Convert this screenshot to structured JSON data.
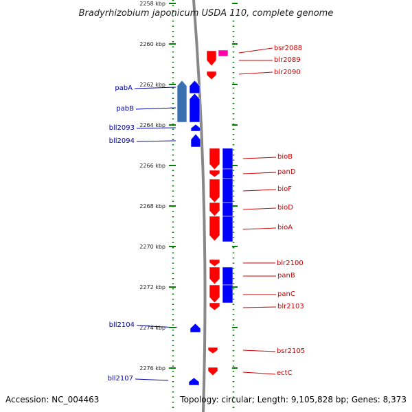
{
  "title": "Bradyrhizobium japonicum USDA 110, complete genome",
  "footer": {
    "accession": "Accession: NC_004463",
    "stats": "Topology: circular; Length: 9,105,828 bp; Genes: 8,373"
  },
  "colors": {
    "forward_gene": "#ff0000",
    "reverse_gene": "#0000ff",
    "rna_gene": "#ff00aa",
    "tick": "#008000",
    "backbone": "#888888",
    "forward_label": "#cc0000",
    "reverse_label": "#0000aa"
  },
  "scale": {
    "unit": "kbp",
    "major_ticks_kbp": [
      2258,
      2260,
      2262,
      2264,
      2266,
      2268,
      2270,
      2272,
      2274,
      2276
    ]
  },
  "genes": [
    {
      "name": "bsr2088",
      "strand": "+",
      "type": "rna"
    },
    {
      "name": "blr2089",
      "strand": "+"
    },
    {
      "name": "blr2090",
      "strand": "+"
    },
    {
      "name": "pabA",
      "strand": "-"
    },
    {
      "name": "pabB",
      "strand": "-"
    },
    {
      "name": "bll2093",
      "strand": "-"
    },
    {
      "name": "bll2094",
      "strand": "-"
    },
    {
      "name": "bioB",
      "strand": "+"
    },
    {
      "name": "panD",
      "strand": "+"
    },
    {
      "name": "bioF",
      "strand": "+"
    },
    {
      "name": "bioD",
      "strand": "+"
    },
    {
      "name": "bioA",
      "strand": "+"
    },
    {
      "name": "blr2100",
      "strand": "+"
    },
    {
      "name": "panB",
      "strand": "+"
    },
    {
      "name": "panC",
      "strand": "+"
    },
    {
      "name": "blr2103",
      "strand": "+"
    },
    {
      "name": "bll2104",
      "strand": "-"
    },
    {
      "name": "bsr2105",
      "strand": "+"
    },
    {
      "name": "ectC",
      "strand": "+"
    },
    {
      "name": "bll2107",
      "strand": "-"
    }
  ]
}
